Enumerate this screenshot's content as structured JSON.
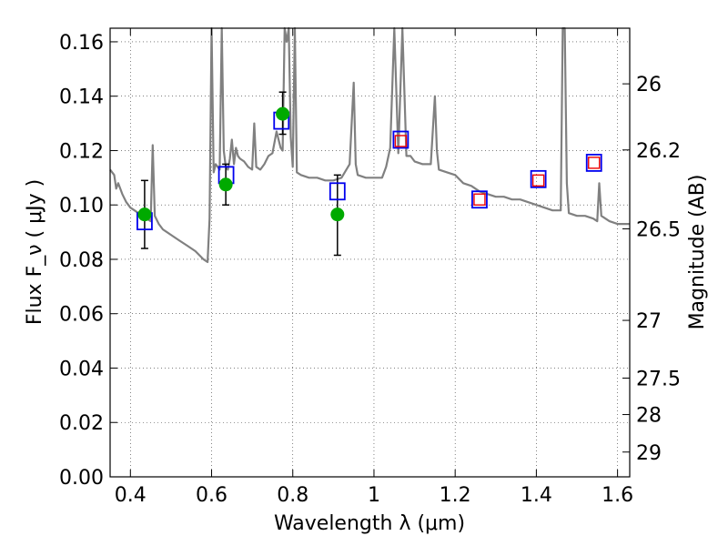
{
  "chart_data": {
    "type": "scatter",
    "xlabel": "Wavelength  λ (μm)",
    "ylabel": "Flux  F_ν  ( μJy )",
    "ylabel_right": "Magnitude (AB)",
    "xlim": [
      0.35,
      1.63
    ],
    "ylim": [
      0.0,
      0.165
    ],
    "grid": true,
    "x_ticks": [
      0.4,
      0.6,
      0.8,
      1.0,
      1.2,
      1.4,
      1.6
    ],
    "x_tick_labels": [
      "0.4",
      "0.6",
      "0.8",
      "1",
      "1.2",
      "1.4",
      "1.6"
    ],
    "y_ticks": [
      0.0,
      0.02,
      0.04,
      0.06,
      0.08,
      0.1,
      0.12,
      0.14,
      0.16
    ],
    "y_tick_labels": [
      "0.00",
      "0.02",
      "0.04",
      "0.06",
      "0.08",
      "0.10",
      "0.12",
      "0.14",
      "0.16"
    ],
    "right_ticks": [
      26,
      26.2,
      26.5,
      27,
      27.5,
      28,
      29
    ],
    "right_tick_labels": [
      "26",
      "26.2",
      "26.5",
      "27",
      "27.5",
      "28",
      "29"
    ],
    "series": [
      {
        "marker": "line",
        "color": "#808080",
        "x": [
          0.35,
          0.36,
          0.365,
          0.37,
          0.38,
          0.39,
          0.4,
          0.41,
          0.42,
          0.43,
          0.44,
          0.45,
          0.455,
          0.46,
          0.47,
          0.48,
          0.5,
          0.52,
          0.54,
          0.56,
          0.58,
          0.59,
          0.595,
          0.6,
          0.605,
          0.61,
          0.62,
          0.625,
          0.63,
          0.635,
          0.64,
          0.645,
          0.65,
          0.655,
          0.66,
          0.665,
          0.67,
          0.68,
          0.69,
          0.7,
          0.705,
          0.71,
          0.72,
          0.73,
          0.74,
          0.75,
          0.76,
          0.77,
          0.775,
          0.78,
          0.785,
          0.79,
          0.795,
          0.8,
          0.805,
          0.81,
          0.82,
          0.84,
          0.86,
          0.88,
          0.9,
          0.92,
          0.94,
          0.95,
          0.955,
          0.96,
          0.98,
          1.0,
          1.02,
          1.03,
          1.04,
          1.05,
          1.06,
          1.07,
          1.08,
          1.09,
          1.1,
          1.12,
          1.14,
          1.15,
          1.155,
          1.16,
          1.18,
          1.2,
          1.22,
          1.24,
          1.26,
          1.28,
          1.3,
          1.32,
          1.34,
          1.36,
          1.38,
          1.4,
          1.42,
          1.44,
          1.46,
          1.465,
          1.47,
          1.475,
          1.48,
          1.5,
          1.52,
          1.54,
          1.55,
          1.555,
          1.56,
          1.58,
          1.6,
          1.63
        ],
        "y": [
          0.113,
          0.111,
          0.106,
          0.108,
          0.104,
          0.101,
          0.099,
          0.098,
          0.097,
          0.096,
          0.095,
          0.094,
          0.122,
          0.096,
          0.093,
          0.091,
          0.089,
          0.087,
          0.085,
          0.083,
          0.08,
          0.079,
          0.095,
          0.165,
          0.112,
          0.115,
          0.113,
          0.165,
          0.12,
          0.114,
          0.113,
          0.117,
          0.124,
          0.115,
          0.121,
          0.118,
          0.117,
          0.116,
          0.114,
          0.113,
          0.13,
          0.114,
          0.113,
          0.115,
          0.118,
          0.119,
          0.127,
          0.121,
          0.12,
          0.165,
          0.16,
          0.165,
          0.125,
          0.114,
          0.165,
          0.112,
          0.111,
          0.11,
          0.11,
          0.109,
          0.109,
          0.11,
          0.115,
          0.145,
          0.115,
          0.111,
          0.11,
          0.11,
          0.11,
          0.114,
          0.121,
          0.165,
          0.119,
          0.165,
          0.118,
          0.118,
          0.116,
          0.115,
          0.115,
          0.14,
          0.12,
          0.113,
          0.112,
          0.111,
          0.108,
          0.107,
          0.105,
          0.104,
          0.103,
          0.103,
          0.102,
          0.102,
          0.101,
          0.1,
          0.099,
          0.098,
          0.098,
          0.165,
          0.165,
          0.108,
          0.097,
          0.096,
          0.096,
          0.095,
          0.094,
          0.108,
          0.096,
          0.094,
          0.093,
          0.093
        ]
      },
      {
        "marker": "circle",
        "color": "#00aa00",
        "x": [
          0.435,
          0.635,
          0.775,
          0.91
        ],
        "y": [
          0.0965,
          0.1075,
          0.1335,
          0.0965
        ],
        "yerr_low": [
          0.084,
          0.1,
          0.126,
          0.0815
        ],
        "yerr_high": [
          0.109,
          0.115,
          0.1415,
          0.111
        ]
      },
      {
        "marker": "square",
        "color": "#0000ee",
        "x": [
          0.435,
          0.636,
          0.772,
          0.91,
          1.066,
          1.26,
          1.405,
          1.542
        ],
        "y": [
          0.094,
          0.111,
          0.131,
          0.105,
          0.124,
          0.102,
          0.1095,
          0.1155
        ]
      },
      {
        "marker": "small-square",
        "color": "#ee0000",
        "x": [
          1.066,
          1.26,
          1.405,
          1.542
        ],
        "y": [
          0.1235,
          0.102,
          0.109,
          0.1155
        ]
      }
    ]
  }
}
